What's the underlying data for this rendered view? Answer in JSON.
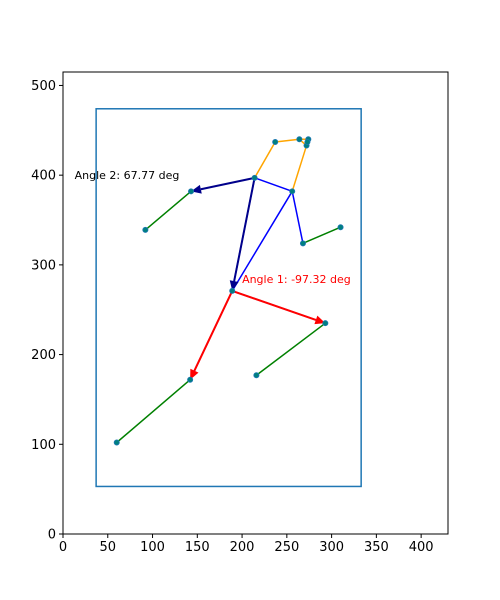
{
  "chart_data": {
    "type": "scatter",
    "title": "",
    "xlabel": "",
    "ylabel": "",
    "xlim": [
      0,
      430
    ],
    "ylim": [
      0,
      515
    ],
    "x_ticks": [
      0,
      50,
      100,
      150,
      200,
      250,
      300,
      350,
      400
    ],
    "y_ticks": [
      0,
      100,
      200,
      300,
      400,
      500
    ],
    "x_tick_labels": [
      "0",
      "50",
      "100",
      "150",
      "200",
      "250",
      "300",
      "350",
      "400"
    ],
    "y_tick_labels": [
      "0",
      "100",
      "200",
      "300",
      "400",
      "500"
    ],
    "grid": false,
    "bounding_box": {
      "x0": 37,
      "y0": 53,
      "x1": 333,
      "y1": 474,
      "color": "#1f77b4"
    },
    "keypoints": [
      {
        "x": 274,
        "y": 440
      },
      {
        "x": 264,
        "y": 440
      },
      {
        "x": 272,
        "y": 433
      },
      {
        "x": 273,
        "y": 437
      },
      {
        "x": 237,
        "y": 437
      },
      {
        "x": 214,
        "y": 397
      },
      {
        "x": 256,
        "y": 382
      },
      {
        "x": 143,
        "y": 382
      },
      {
        "x": 268,
        "y": 324
      },
      {
        "x": 92,
        "y": 339
      },
      {
        "x": 310,
        "y": 342
      },
      {
        "x": 189,
        "y": 271
      },
      {
        "x": 293,
        "y": 235
      },
      {
        "x": 142,
        "y": 172
      },
      {
        "x": 216,
        "y": 177
      },
      {
        "x": 60,
        "y": 102
      }
    ],
    "segments": [
      {
        "points": [
          [
            237,
            437
          ],
          [
            264,
            440
          ],
          [
            274,
            440
          ],
          [
            272,
            433
          ],
          [
            264,
            440
          ]
        ],
        "color": "#ffa500"
      },
      {
        "points": [
          [
            214,
            397
          ],
          [
            237,
            437
          ]
        ],
        "color": "#ffa500"
      },
      {
        "points": [
          [
            256,
            382
          ],
          [
            272,
            433
          ]
        ],
        "color": "#ffa500"
      },
      {
        "points": [
          [
            214,
            397
          ],
          [
            256,
            382
          ]
        ],
        "color": "#0000ff"
      },
      {
        "points": [
          [
            256,
            382
          ],
          [
            268,
            324
          ]
        ],
        "color": "#0000ff"
      },
      {
        "points": [
          [
            214,
            397
          ],
          [
            189,
            271
          ]
        ],
        "color": "#0000ff"
      },
      {
        "points": [
          [
            256,
            382
          ],
          [
            189,
            271
          ]
        ],
        "color": "#0000ff"
      },
      {
        "points": [
          [
            189,
            271
          ],
          [
            293,
            235
          ]
        ],
        "color": "#0000ff"
      },
      {
        "points": [
          [
            189,
            271
          ],
          [
            142,
            172
          ]
        ],
        "color": "#0000ff"
      },
      {
        "points": [
          [
            143,
            382
          ],
          [
            92,
            339
          ]
        ],
        "color": "#008000"
      },
      {
        "points": [
          [
            268,
            324
          ],
          [
            310,
            342
          ]
        ],
        "color": "#008000"
      },
      {
        "points": [
          [
            293,
            235
          ],
          [
            216,
            177
          ]
        ],
        "color": "#008000"
      },
      {
        "points": [
          [
            142,
            172
          ],
          [
            60,
            102
          ]
        ],
        "color": "#008000"
      }
    ],
    "arrows": [
      {
        "from": [
          214,
          397
        ],
        "to": [
          143,
          382
        ],
        "color": "#00008b"
      },
      {
        "from": [
          214,
          397
        ],
        "to": [
          189,
          271
        ],
        "color": "#00008b"
      },
      {
        "from": [
          189,
          271
        ],
        "to": [
          293,
          235
        ],
        "color": "#ff0000"
      },
      {
        "from": [
          189,
          271
        ],
        "to": [
          142,
          172
        ],
        "color": "#ff0000"
      }
    ],
    "annotations": [
      {
        "text": "Angle 1: -97.32 deg",
        "x": 200,
        "y": 280,
        "color": "#ff0000"
      },
      {
        "text": "Angle 2: 67.77 deg",
        "x": 13,
        "y": 396,
        "color": "#000000"
      }
    ],
    "colors": {
      "keypoint_fill": "#008080",
      "keypoint_edge": "#1f77b4",
      "axis": "#000000"
    }
  }
}
